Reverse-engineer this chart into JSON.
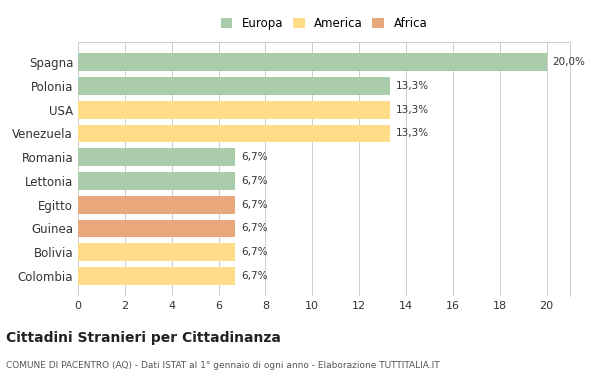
{
  "categories": [
    "Colombia",
    "Bolivia",
    "Guinea",
    "Egitto",
    "Lettonia",
    "Romania",
    "Venezuela",
    "USA",
    "Polonia",
    "Spagna"
  ],
  "values": [
    6.7,
    6.7,
    6.7,
    6.7,
    6.7,
    6.7,
    13.3,
    13.3,
    13.3,
    20.0
  ],
  "colors": [
    "#FFDD88",
    "#FFDD88",
    "#E8A87C",
    "#E8A87C",
    "#AACCAA",
    "#AACCAA",
    "#FFDD88",
    "#FFDD88",
    "#AACCAA",
    "#AACCAA"
  ],
  "labels": [
    "6,7%",
    "6,7%",
    "6,7%",
    "6,7%",
    "6,7%",
    "6,7%",
    "13,3%",
    "13,3%",
    "13,3%",
    "20,0%"
  ],
  "legend": [
    {
      "label": "Europa",
      "color": "#AACCAA"
    },
    {
      "label": "America",
      "color": "#FFDD88"
    },
    {
      "label": "Africa",
      "color": "#E8A87C"
    }
  ],
  "xlim": [
    0,
    21
  ],
  "xticks": [
    0,
    2,
    4,
    6,
    8,
    10,
    12,
    14,
    16,
    18,
    20
  ],
  "title": "Cittadini Stranieri per Cittadinanza",
  "subtitle": "COMUNE DI PACENTRO (AQ) - Dati ISTAT al 1° gennaio di ogni anno - Elaborazione TUTTITALIA.IT",
  "bg_color": "#ffffff",
  "grid_color": "#cccccc",
  "bar_height": 0.75
}
